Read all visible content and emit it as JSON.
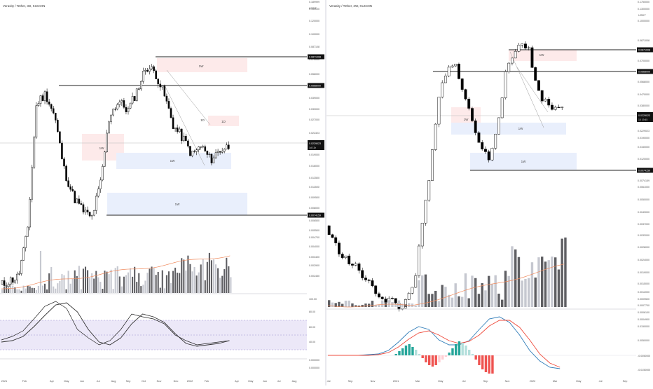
{
  "colors": {
    "up_candle": "#ffffff",
    "down_candle": "#000000",
    "volume_dark": "#5f5f63",
    "volume_light": "#c6c8d0",
    "volume_ma": "#f08a5d",
    "supply_zone": "#fdeaea",
    "demand_zone": "#e9effc",
    "rsi_band": "#ece8f8",
    "macd_line": "#2f7cb8",
    "signal_line": "#ef4b3c",
    "hist_pos_strong": "#26a69a",
    "hist_pos_weak": "#b2dfdb",
    "hist_neg_strong": "#ef5350",
    "hist_neg_weak": "#ffcdd2"
  },
  "left_chart": {
    "title": "Verasity / Tether, 3D, KUCOIN",
    "currency": "USDT",
    "price_scale": [
      "0.189999",
      "0.150000",
      "0.120000",
      "0.100000",
      "0.087108",
      "0.070000",
      "0.056000",
      "0.047000",
      "0.039000",
      "0.033000",
      "0.027000",
      "0.022323",
      "0.019000",
      "0.016000",
      "0.013500",
      "0.011500",
      "0.009500",
      "0.008000",
      "0.007419",
      "0.006500",
      "0.005500",
      "0.004700",
      "0.004000",
      "0.003400",
      "0.002900",
      "0.002450"
    ],
    "last_price": "0.0229023",
    "last_price_countdown": "1d 11h",
    "level_labels": [
      "0.0871008",
      "0.0568000",
      "0.0074159"
    ],
    "zone_labels": [
      "1W",
      "1W",
      "1W",
      "1W",
      "1D",
      "1D"
    ],
    "x_axis": [
      "2021",
      "Feb",
      "Apr",
      "May",
      "Jun",
      "Jul",
      "Aug",
      "Sep",
      "Oct",
      "Nov",
      "Dec",
      "2022",
      "Feb",
      "Apr",
      "May",
      "Jun",
      "Jul",
      "Aug"
    ],
    "rsi_scale": [
      "100.00",
      "80.00",
      "60.00",
      "40.00",
      "0.000000",
      "0.000000"
    ]
  },
  "right_chart": {
    "title": "Verasity / Tether, 3W, KUCOIN",
    "currency": "USDT",
    "price_scale": [
      "0.1750000",
      "0.1300000",
      "0.1000000",
      "0.0871008",
      "0.0700000",
      "0.0568000",
      "0.0470000",
      "0.0380000",
      "0.0290000",
      "0.0229023",
      "0.0190000",
      "0.0150000",
      "0.0120000",
      "0.0090000",
      "0.0074159",
      "0.0061000",
      "0.0050000",
      "0.0043000",
      "0.0037000",
      "0.0032000",
      "0.0028000",
      "0.0024000",
      "0.0019000",
      "0.0015000",
      "0.0012000",
      "0.0009500",
      "0.0007700",
      "0.0006100",
      "0.0004900"
    ],
    "last_price": "0.0229023",
    "last_price_countdown": "10 19:45",
    "zone_labels": [
      "1W",
      "1W",
      "1W",
      "1W"
    ],
    "x_axis": [
      "Jul",
      "Sep",
      "Nov",
      "2021",
      "Mar",
      "May",
      "Jul",
      "Sep",
      "Nov",
      "2022",
      "Mar",
      "May",
      "Jul",
      "Sep"
    ],
    "macd_scale": [
      "0.0150000",
      "0.0050000",
      "-0.0050000",
      "-0.0150000"
    ]
  }
}
